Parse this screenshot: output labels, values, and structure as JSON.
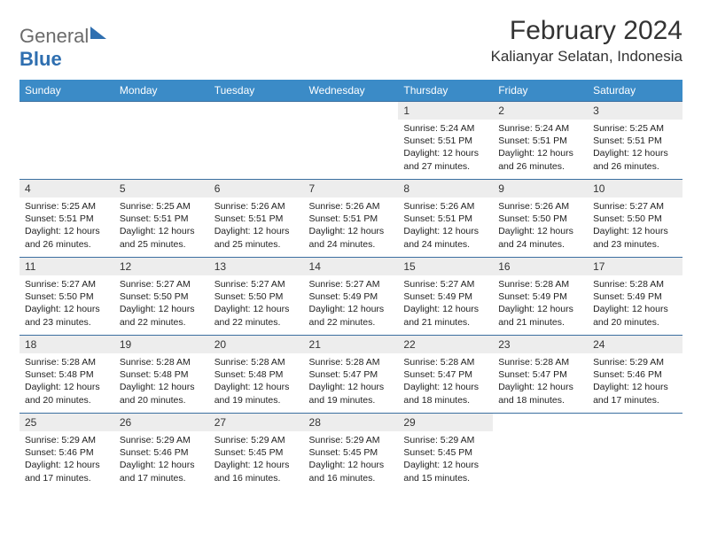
{
  "header": {
    "logo_general": "General",
    "logo_blue": "Blue",
    "month_title": "February 2024",
    "location": "Kalianyar Selatan, Indonesia"
  },
  "colors": {
    "header_bg": "#3b8bc7",
    "header_text": "#ffffff",
    "daynum_bg": "#ededed",
    "row_border": "#3b6fa0",
    "logo_gray": "#6b6b6b",
    "logo_blue": "#2f6fb0",
    "text": "#222222",
    "bg": "#ffffff"
  },
  "day_names": [
    "Sunday",
    "Monday",
    "Tuesday",
    "Wednesday",
    "Thursday",
    "Friday",
    "Saturday"
  ],
  "weeks": [
    [
      {
        "blank": true
      },
      {
        "blank": true
      },
      {
        "blank": true
      },
      {
        "blank": true
      },
      {
        "num": "1",
        "l1": "Sunrise: 5:24 AM",
        "l2": "Sunset: 5:51 PM",
        "l3": "Daylight: 12 hours",
        "l4": "and 27 minutes."
      },
      {
        "num": "2",
        "l1": "Sunrise: 5:24 AM",
        "l2": "Sunset: 5:51 PM",
        "l3": "Daylight: 12 hours",
        "l4": "and 26 minutes."
      },
      {
        "num": "3",
        "l1": "Sunrise: 5:25 AM",
        "l2": "Sunset: 5:51 PM",
        "l3": "Daylight: 12 hours",
        "l4": "and 26 minutes."
      }
    ],
    [
      {
        "num": "4",
        "l1": "Sunrise: 5:25 AM",
        "l2": "Sunset: 5:51 PM",
        "l3": "Daylight: 12 hours",
        "l4": "and 26 minutes."
      },
      {
        "num": "5",
        "l1": "Sunrise: 5:25 AM",
        "l2": "Sunset: 5:51 PM",
        "l3": "Daylight: 12 hours",
        "l4": "and 25 minutes."
      },
      {
        "num": "6",
        "l1": "Sunrise: 5:26 AM",
        "l2": "Sunset: 5:51 PM",
        "l3": "Daylight: 12 hours",
        "l4": "and 25 minutes."
      },
      {
        "num": "7",
        "l1": "Sunrise: 5:26 AM",
        "l2": "Sunset: 5:51 PM",
        "l3": "Daylight: 12 hours",
        "l4": "and 24 minutes."
      },
      {
        "num": "8",
        "l1": "Sunrise: 5:26 AM",
        "l2": "Sunset: 5:51 PM",
        "l3": "Daylight: 12 hours",
        "l4": "and 24 minutes."
      },
      {
        "num": "9",
        "l1": "Sunrise: 5:26 AM",
        "l2": "Sunset: 5:50 PM",
        "l3": "Daylight: 12 hours",
        "l4": "and 24 minutes."
      },
      {
        "num": "10",
        "l1": "Sunrise: 5:27 AM",
        "l2": "Sunset: 5:50 PM",
        "l3": "Daylight: 12 hours",
        "l4": "and 23 minutes."
      }
    ],
    [
      {
        "num": "11",
        "l1": "Sunrise: 5:27 AM",
        "l2": "Sunset: 5:50 PM",
        "l3": "Daylight: 12 hours",
        "l4": "and 23 minutes."
      },
      {
        "num": "12",
        "l1": "Sunrise: 5:27 AM",
        "l2": "Sunset: 5:50 PM",
        "l3": "Daylight: 12 hours",
        "l4": "and 22 minutes."
      },
      {
        "num": "13",
        "l1": "Sunrise: 5:27 AM",
        "l2": "Sunset: 5:50 PM",
        "l3": "Daylight: 12 hours",
        "l4": "and 22 minutes."
      },
      {
        "num": "14",
        "l1": "Sunrise: 5:27 AM",
        "l2": "Sunset: 5:49 PM",
        "l3": "Daylight: 12 hours",
        "l4": "and 22 minutes."
      },
      {
        "num": "15",
        "l1": "Sunrise: 5:27 AM",
        "l2": "Sunset: 5:49 PM",
        "l3": "Daylight: 12 hours",
        "l4": "and 21 minutes."
      },
      {
        "num": "16",
        "l1": "Sunrise: 5:28 AM",
        "l2": "Sunset: 5:49 PM",
        "l3": "Daylight: 12 hours",
        "l4": "and 21 minutes."
      },
      {
        "num": "17",
        "l1": "Sunrise: 5:28 AM",
        "l2": "Sunset: 5:49 PM",
        "l3": "Daylight: 12 hours",
        "l4": "and 20 minutes."
      }
    ],
    [
      {
        "num": "18",
        "l1": "Sunrise: 5:28 AM",
        "l2": "Sunset: 5:48 PM",
        "l3": "Daylight: 12 hours",
        "l4": "and 20 minutes."
      },
      {
        "num": "19",
        "l1": "Sunrise: 5:28 AM",
        "l2": "Sunset: 5:48 PM",
        "l3": "Daylight: 12 hours",
        "l4": "and 20 minutes."
      },
      {
        "num": "20",
        "l1": "Sunrise: 5:28 AM",
        "l2": "Sunset: 5:48 PM",
        "l3": "Daylight: 12 hours",
        "l4": "and 19 minutes."
      },
      {
        "num": "21",
        "l1": "Sunrise: 5:28 AM",
        "l2": "Sunset: 5:47 PM",
        "l3": "Daylight: 12 hours",
        "l4": "and 19 minutes."
      },
      {
        "num": "22",
        "l1": "Sunrise: 5:28 AM",
        "l2": "Sunset: 5:47 PM",
        "l3": "Daylight: 12 hours",
        "l4": "and 18 minutes."
      },
      {
        "num": "23",
        "l1": "Sunrise: 5:28 AM",
        "l2": "Sunset: 5:47 PM",
        "l3": "Daylight: 12 hours",
        "l4": "and 18 minutes."
      },
      {
        "num": "24",
        "l1": "Sunrise: 5:29 AM",
        "l2": "Sunset: 5:46 PM",
        "l3": "Daylight: 12 hours",
        "l4": "and 17 minutes."
      }
    ],
    [
      {
        "num": "25",
        "l1": "Sunrise: 5:29 AM",
        "l2": "Sunset: 5:46 PM",
        "l3": "Daylight: 12 hours",
        "l4": "and 17 minutes."
      },
      {
        "num": "26",
        "l1": "Sunrise: 5:29 AM",
        "l2": "Sunset: 5:46 PM",
        "l3": "Daylight: 12 hours",
        "l4": "and 17 minutes."
      },
      {
        "num": "27",
        "l1": "Sunrise: 5:29 AM",
        "l2": "Sunset: 5:45 PM",
        "l3": "Daylight: 12 hours",
        "l4": "and 16 minutes."
      },
      {
        "num": "28",
        "l1": "Sunrise: 5:29 AM",
        "l2": "Sunset: 5:45 PM",
        "l3": "Daylight: 12 hours",
        "l4": "and 16 minutes."
      },
      {
        "num": "29",
        "l1": "Sunrise: 5:29 AM",
        "l2": "Sunset: 5:45 PM",
        "l3": "Daylight: 12 hours",
        "l4": "and 15 minutes."
      },
      {
        "blank": true
      },
      {
        "blank": true
      }
    ]
  ]
}
